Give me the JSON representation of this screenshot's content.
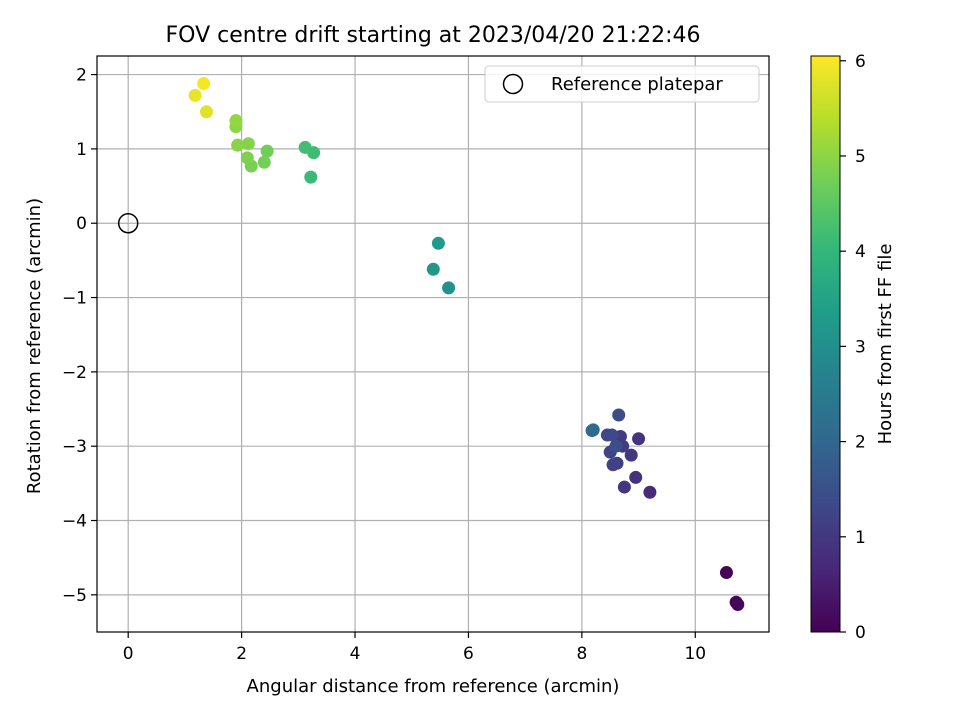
{
  "chart_data": {
    "type": "scatter",
    "title": "FOV centre drift starting at 2023/04/20 21:22:46",
    "xlabel": "Angular distance from reference (arcmin)",
    "ylabel": "Rotation from reference (arcmin)",
    "xlim": [
      -0.55,
      11.3
    ],
    "ylim": [
      -5.5,
      2.25
    ],
    "xticks": [
      0,
      2,
      4,
      6,
      8,
      10
    ],
    "yticks": [
      2,
      1,
      0,
      -1,
      -2,
      -3,
      -4,
      -5
    ],
    "xtick_labels": [
      "0",
      "2",
      "4",
      "6",
      "8",
      "10"
    ],
    "ytick_labels": [
      "2",
      "1",
      "0",
      "−1",
      "−2",
      "−3",
      "−4",
      "−5"
    ],
    "grid": true,
    "legend": {
      "placement": "top-right",
      "entries": [
        "Reference platepar"
      ]
    },
    "reference_point": {
      "x": 0,
      "y": 0
    },
    "colorbar": {
      "label": "Hours from first FF file",
      "range": [
        0,
        6.05
      ],
      "ticks": [
        0,
        1,
        2,
        3,
        4,
        5,
        6
      ],
      "tick_labels": [
        "0",
        "1",
        "2",
        "3",
        "4",
        "5",
        "6"
      ],
      "colormap": [
        "#440154",
        "#482878",
        "#3e4989",
        "#31688e",
        "#26828e",
        "#1f9e89",
        "#35b779",
        "#6ece58",
        "#b5de2b",
        "#fde725"
      ]
    },
    "points": [
      {
        "x": 10.55,
        "y": -4.7,
        "c": 0.05
      },
      {
        "x": 10.72,
        "y": -5.1,
        "c": 0.08
      },
      {
        "x": 10.75,
        "y": -5.13,
        "c": 0.1
      },
      {
        "x": 9.2,
        "y": -3.62,
        "c": 0.75
      },
      {
        "x": 8.95,
        "y": -3.42,
        "c": 0.85
      },
      {
        "x": 9.0,
        "y": -2.9,
        "c": 0.9
      },
      {
        "x": 8.75,
        "y": -3.55,
        "c": 0.95
      },
      {
        "x": 8.87,
        "y": -3.12,
        "c": 1.0
      },
      {
        "x": 8.68,
        "y": -2.87,
        "c": 1.05
      },
      {
        "x": 8.72,
        "y": -3.0,
        "c": 1.1
      },
      {
        "x": 8.62,
        "y": -3.23,
        "c": 1.15
      },
      {
        "x": 8.55,
        "y": -3.25,
        "c": 1.2
      },
      {
        "x": 8.5,
        "y": -3.08,
        "c": 1.25
      },
      {
        "x": 8.45,
        "y": -2.85,
        "c": 1.3
      },
      {
        "x": 8.53,
        "y": -2.85,
        "c": 1.35
      },
      {
        "x": 8.65,
        "y": -2.58,
        "c": 1.4
      },
      {
        "x": 8.6,
        "y": -3.0,
        "c": 1.45
      },
      {
        "x": 8.2,
        "y": -2.78,
        "c": 2.05
      },
      {
        "x": 8.18,
        "y": -2.79,
        "c": 2.1
      },
      {
        "x": 5.65,
        "y": -0.87,
        "c": 3.1
      },
      {
        "x": 5.38,
        "y": -0.62,
        "c": 3.2
      },
      {
        "x": 5.47,
        "y": -0.27,
        "c": 3.3
      },
      {
        "x": 3.22,
        "y": 0.62,
        "c": 4.1
      },
      {
        "x": 3.27,
        "y": 0.95,
        "c": 4.15
      },
      {
        "x": 3.12,
        "y": 1.02,
        "c": 4.2
      },
      {
        "x": 2.45,
        "y": 0.97,
        "c": 4.7
      },
      {
        "x": 2.4,
        "y": 0.82,
        "c": 4.75
      },
      {
        "x": 2.17,
        "y": 0.77,
        "c": 4.8
      },
      {
        "x": 2.1,
        "y": 0.88,
        "c": 4.85
      },
      {
        "x": 2.12,
        "y": 1.07,
        "c": 4.9
      },
      {
        "x": 1.93,
        "y": 1.05,
        "c": 4.95
      },
      {
        "x": 1.9,
        "y": 1.3,
        "c": 5.0
      },
      {
        "x": 1.9,
        "y": 1.38,
        "c": 5.05
      },
      {
        "x": 1.38,
        "y": 1.5,
        "c": 5.75
      },
      {
        "x": 1.18,
        "y": 1.72,
        "c": 5.85
      },
      {
        "x": 1.33,
        "y": 1.88,
        "c": 6.0
      }
    ]
  }
}
